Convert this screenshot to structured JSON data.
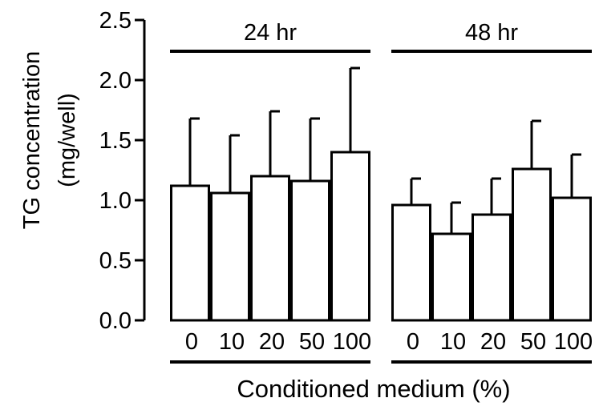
{
  "chart_data": {
    "type": "bar",
    "ylabel_lines": [
      "TG concentration",
      "(mg/well)"
    ],
    "xlabel": "Conditioned medium (%)",
    "ylim": [
      0,
      2.5
    ],
    "yticks": [
      0.0,
      0.5,
      1.0,
      1.5,
      2.0,
      2.5
    ],
    "ytick_labels": [
      "0.0",
      "0.5",
      "1.0",
      "1.5",
      "2.0",
      "2.5"
    ],
    "grid": false,
    "error_bars": "upper",
    "groups": [
      {
        "label": "24 hr",
        "categories": [
          "0",
          "10",
          "20",
          "50",
          "100"
        ],
        "values": [
          1.12,
          1.06,
          1.2,
          1.16,
          1.4
        ],
        "errors": [
          0.56,
          0.48,
          0.54,
          0.52,
          0.7
        ]
      },
      {
        "label": "48 hr",
        "categories": [
          "0",
          "10",
          "20",
          "50",
          "100"
        ],
        "values": [
          0.96,
          0.72,
          0.88,
          1.26,
          1.02
        ],
        "errors": [
          0.22,
          0.26,
          0.3,
          0.4,
          0.36
        ]
      }
    ],
    "colors": {
      "bar_fill": "#ffffff",
      "stroke": "#000000"
    }
  }
}
